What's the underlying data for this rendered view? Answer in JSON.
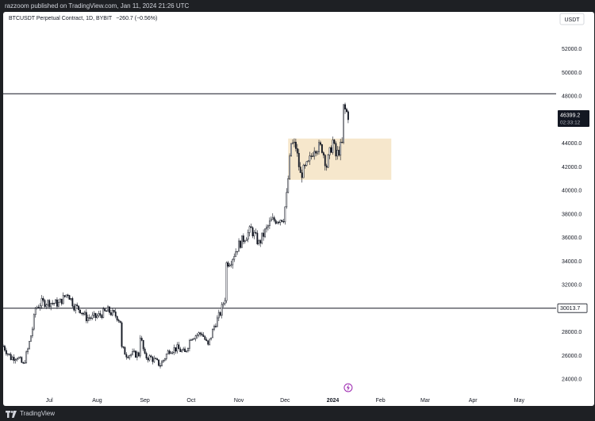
{
  "header": {
    "published_text": "razzoom published on TradingView.com, Jan 11, 2024 21:26 UTC"
  },
  "footer": {
    "brand_label": "TradingView"
  },
  "colors": {
    "background": "#ffffff",
    "frame": "#1e2024",
    "candle": "#131722",
    "text": "#131722",
    "label_bg": "#131722",
    "label_text": "#ffffff",
    "zone_fill": "#f4e3c3",
    "event_icon": "#9c27b0"
  },
  "chart_data": {
    "type": "candlestick",
    "symbol_title": "BTCUSDT Perpetual Contract, 1D, BYBIT",
    "change_text": "−260.7 (−0.56%)",
    "currency_label": "USDT",
    "price_ylim": [
      23000,
      54000
    ],
    "y_ticks": [
      "24000.0",
      "26000.0",
      "28000.0",
      "30000.0",
      "32000.0",
      "34000.0",
      "36000.0",
      "38000.0",
      "40000.0",
      "42000.0",
      "44000.0",
      "46000.0",
      "48000.0",
      "50000.0",
      "52000.0"
    ],
    "x_ticks": [
      "Jul",
      "Aug",
      "Sep",
      "Oct",
      "Nov",
      "Dec",
      "2024",
      "Feb",
      "Mar",
      "Apr",
      "May"
    ],
    "x_tick_dates": [
      "2023-07-01",
      "2023-08-01",
      "2023-09-01",
      "2023-10-01",
      "2023-11-01",
      "2023-12-01",
      "2024-01-01",
      "2024-02-01",
      "2024-03-01",
      "2024-04-01",
      "2024-05-01"
    ],
    "start_date": "2023-06-01",
    "x_range": [
      "2023-06-01",
      "2024-05-25"
    ],
    "horizontal_lines": [
      {
        "price": 48200,
        "label": ""
      },
      {
        "price": 30013.7,
        "label": "30013.7"
      }
    ],
    "last_price_label": {
      "price": 46399.2,
      "text": "46399.2",
      "countdown": "02:33:12"
    },
    "zone": {
      "from_date": "2023-12-03",
      "to_date": "2024-02-08",
      "low": 40900,
      "high": 44400
    },
    "event_icon_date": "2024-01-11",
    "bold_tick": "2024",
    "grid": false,
    "close_path": [
      [
        "2023-06-01",
        26800
      ],
      [
        "2023-06-06",
        25800
      ],
      [
        "2023-06-10",
        25900
      ],
      [
        "2023-06-14",
        25200
      ],
      [
        "2023-06-17",
        26500
      ],
      [
        "2023-06-20",
        28300
      ],
      [
        "2023-06-22",
        30000
      ],
      [
        "2023-06-26",
        30500
      ],
      [
        "2023-07-01",
        30500
      ],
      [
        "2023-07-07",
        30400
      ],
      [
        "2023-07-13",
        31300
      ],
      [
        "2023-07-17",
        30200
      ],
      [
        "2023-07-21",
        29900
      ],
      [
        "2023-07-25",
        29200
      ],
      [
        "2023-07-31",
        29250
      ],
      [
        "2023-08-08",
        29800
      ],
      [
        "2023-08-14",
        29300
      ],
      [
        "2023-08-16",
        28900
      ],
      [
        "2023-08-17",
        26600
      ],
      [
        "2023-08-20",
        26100
      ],
      [
        "2023-08-28",
        26100
      ],
      [
        "2023-08-29",
        27700
      ],
      [
        "2023-09-01",
        25900
      ],
      [
        "2023-09-05",
        25800
      ],
      [
        "2023-09-11",
        25200
      ],
      [
        "2023-09-17",
        26500
      ],
      [
        "2023-09-22",
        26600
      ],
      [
        "2023-09-27",
        26200
      ],
      [
        "2023-10-01",
        27600
      ],
      [
        "2023-10-08",
        27900
      ],
      [
        "2023-10-12",
        26800
      ],
      [
        "2023-10-16",
        28500
      ],
      [
        "2023-10-20",
        29600
      ],
      [
        "2023-10-23",
        30900
      ],
      [
        "2023-10-24",
        33800
      ],
      [
        "2023-10-27",
        34100
      ],
      [
        "2023-11-01",
        35400
      ],
      [
        "2023-11-09",
        36700
      ],
      [
        "2023-11-14",
        35500
      ],
      [
        "2023-11-18",
        36500
      ],
      [
        "2023-11-22",
        37400
      ],
      [
        "2023-11-30",
        37700
      ],
      [
        "2023-12-02",
        39500
      ],
      [
        "2023-12-05",
        44000
      ],
      [
        "2023-12-08",
        43700
      ],
      [
        "2023-12-11",
        41300
      ],
      [
        "2023-12-16",
        42200
      ],
      [
        "2023-12-20",
        43700
      ],
      [
        "2023-12-25",
        43600
      ],
      [
        "2023-12-28",
        42100
      ],
      [
        "2024-01-01",
        44200
      ],
      [
        "2024-01-03",
        42900
      ],
      [
        "2024-01-07",
        43900
      ],
      [
        "2024-01-08",
        47000
      ],
      [
        "2024-01-10",
        46600
      ],
      [
        "2024-01-11",
        46399.2
      ]
    ]
  }
}
